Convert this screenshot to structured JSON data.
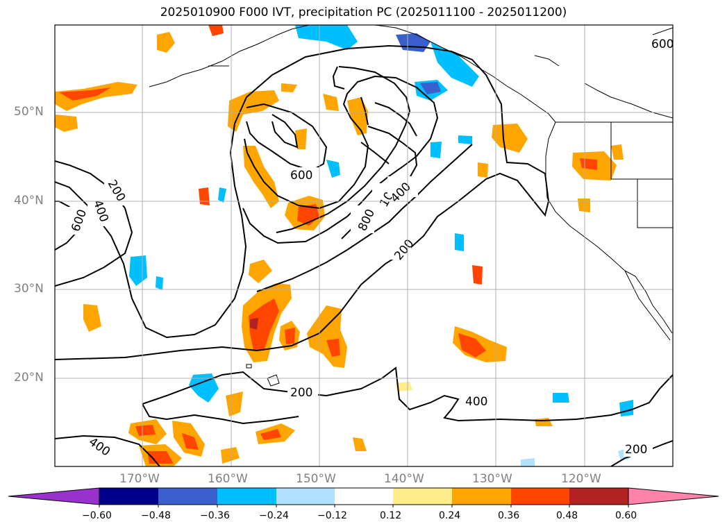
{
  "title": "2025010900 F000 IVT, precipitation PC (2025011100 - 2025011200)",
  "lat_labels": [
    "50°N",
    "40°N",
    "30°N",
    "20°N"
  ],
  "lon_labels": [
    "170°W",
    "160°W",
    "150°W",
    "140°W",
    "130°W",
    "120°W"
  ],
  "contour_labels": [
    "600",
    "200",
    "400",
    "600",
    "800",
    "1000",
    "400",
    "200",
    "200",
    "400",
    "400",
    "200",
    "600"
  ],
  "colorbar": {
    "ticks": [
      "−0.60",
      "−0.48",
      "−0.36",
      "−0.24",
      "−0.12",
      "0.12",
      "0.24",
      "0.36",
      "0.48",
      "0.60"
    ],
    "colors": [
      "#9932cc",
      "#00008b",
      "#3a5fcd",
      "#00bfff",
      "#b0e2ff",
      "#ffffff",
      "#ffec8b",
      "#ffa500",
      "#ff4500",
      "#b22222",
      "#ff82ab"
    ]
  }
}
